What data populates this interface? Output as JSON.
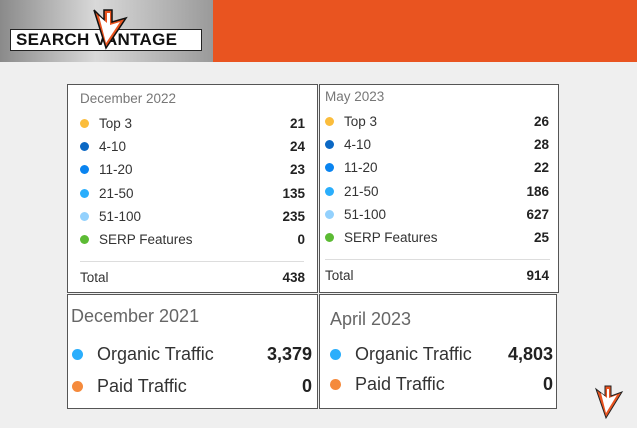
{
  "header": {
    "logo_text": "SEARCH VANTAGE",
    "brand_color": "#e95420"
  },
  "colors": {
    "top3": "#fbbd3c",
    "4-10": "#0b68c4",
    "11-20": "#0a84f0",
    "21-50": "#2aaefc",
    "51-100": "#93d1fd",
    "serp": "#5cbb34",
    "organic": "#2aaefc",
    "paid": "#f58a3c"
  },
  "rankings": [
    {
      "title": "December 2022",
      "rows": [
        {
          "label": "Top 3",
          "value": "21"
        },
        {
          "label": "4-10",
          "value": "24"
        },
        {
          "label": "11-20",
          "value": "23"
        },
        {
          "label": "21-50",
          "value": "135"
        },
        {
          "label": "51-100",
          "value": "235"
        },
        {
          "label": "SERP Features",
          "value": "0"
        }
      ],
      "total_label": "Total",
      "total": "438"
    },
    {
      "title": "May 2023",
      "rows": [
        {
          "label": "Top 3",
          "value": "26"
        },
        {
          "label": "4-10",
          "value": "28"
        },
        {
          "label": "11-20",
          "value": "22"
        },
        {
          "label": "21-50",
          "value": "186"
        },
        {
          "label": "51-100",
          "value": "627"
        },
        {
          "label": "SERP Features",
          "value": "25"
        }
      ],
      "total_label": "Total",
      "total": "914"
    }
  ],
  "traffic": [
    {
      "title": "December 2021",
      "organic_label": "Organic Traffic",
      "organic": "3,379",
      "paid_label": "Paid Traffic",
      "paid": "0"
    },
    {
      "title": "April 2023",
      "organic_label": "Organic Traffic",
      "organic": "4,803",
      "paid_label": "Paid Traffic",
      "paid": "0"
    }
  ]
}
